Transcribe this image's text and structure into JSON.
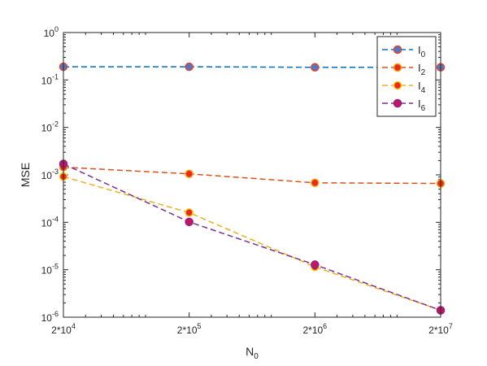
{
  "chart_data": {
    "type": "line",
    "x_scale": "log",
    "y_scale": "log",
    "xlabel": {
      "main": "N",
      "sub": "0"
    },
    "ylabel": "MSE",
    "x_ticks": [
      {
        "value": 20000,
        "base": "2*10",
        "exp": "4"
      },
      {
        "value": 200000,
        "base": "2*10",
        "exp": "5"
      },
      {
        "value": 2000000,
        "base": "2*10",
        "exp": "6"
      },
      {
        "value": 20000000,
        "base": "2*10",
        "exp": "7"
      }
    ],
    "y_ticks": [
      {
        "value": 1e-06,
        "base": "10",
        "exp": "-6"
      },
      {
        "value": 1e-05,
        "base": "10",
        "exp": "-5"
      },
      {
        "value": 0.0001,
        "base": "10",
        "exp": "-4"
      },
      {
        "value": 0.001,
        "base": "10",
        "exp": "-3"
      },
      {
        "value": 0.01,
        "base": "10",
        "exp": "-2"
      },
      {
        "value": 0.1,
        "base": "10",
        "exp": "-1"
      },
      {
        "value": 1,
        "base": "10",
        "exp": "0"
      }
    ],
    "xlim": [
      20000,
      20000000
    ],
    "ylim": [
      1e-06,
      1
    ],
    "grid": false,
    "legend_position": "top-right",
    "x": [
      20000,
      200000,
      2000000,
      20000000
    ],
    "series": [
      {
        "name": "I",
        "sub": "0",
        "values": [
          0.19,
          0.19,
          0.185,
          0.185
        ],
        "line_color": "#0072BD",
        "face_color": "#4C78C6",
        "edge_color": "#E8402A"
      },
      {
        "name": "I",
        "sub": "2",
        "values": [
          0.00145,
          0.00105,
          0.00068,
          0.00066
        ],
        "line_color": "#D95319",
        "face_color": "#E82A1E",
        "edge_color": "#F4A30E"
      },
      {
        "name": "I",
        "sub": "4",
        "values": [
          0.00092,
          0.00016,
          1.15e-05,
          1.4e-06
        ],
        "line_color": "#EDB120",
        "face_color": "#E82A1E",
        "edge_color": "#F6C514"
      },
      {
        "name": "I",
        "sub": "6",
        "values": [
          0.0017,
          0.000102,
          1.28e-05,
          1.4e-06
        ],
        "line_color": "#7E2F8E",
        "face_color": "#C2185B",
        "edge_color": "#8E1E8E"
      }
    ]
  }
}
